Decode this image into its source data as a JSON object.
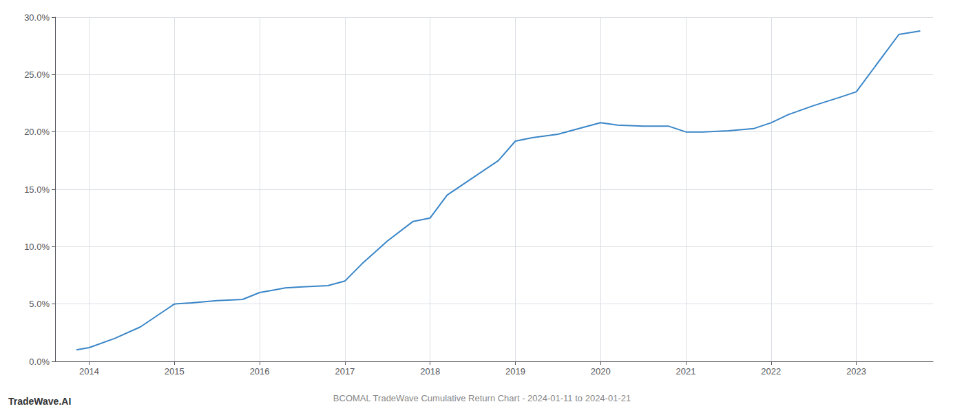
{
  "chart_data": {
    "type": "line",
    "title": "BCOMAL TradeWave Cumulative Return Chart - 2024-01-11 to 2024-01-21",
    "annotations": [
      "TradeWave.AI"
    ],
    "color": "#3a86c8",
    "grid": true,
    "x": [
      2013.85,
      2014.0,
      2014.3,
      2014.6,
      2014.9,
      2015.0,
      2015.2,
      2015.5,
      2015.8,
      2016.0,
      2016.15,
      2016.3,
      2016.5,
      2016.8,
      2017.0,
      2017.2,
      2017.5,
      2017.8,
      2018.0,
      2018.2,
      2018.5,
      2018.8,
      2019.0,
      2019.2,
      2019.5,
      2019.7,
      2020.0,
      2020.2,
      2020.5,
      2020.8,
      2021.0,
      2021.2,
      2021.5,
      2021.8,
      2022.0,
      2022.2,
      2022.5,
      2022.8,
      2023.0,
      2023.2,
      2023.5,
      2023.75
    ],
    "values": [
      1.0,
      1.2,
      2.0,
      3.0,
      4.5,
      5.0,
      5.1,
      5.3,
      5.4,
      6.0,
      6.2,
      6.4,
      6.5,
      6.6,
      7.0,
      8.5,
      10.5,
      12.2,
      12.5,
      14.5,
      16.0,
      17.5,
      19.2,
      19.5,
      19.8,
      20.2,
      20.8,
      20.6,
      20.5,
      20.5,
      20.0,
      20.0,
      20.1,
      20.3,
      20.8,
      21.5,
      22.3,
      23.0,
      23.5,
      25.5,
      28.5,
      28.8
    ],
    "xlim": [
      2013.6,
      2023.9
    ],
    "xticks": [
      2014,
      2015,
      2016,
      2017,
      2018,
      2019,
      2020,
      2021,
      2022,
      2023
    ],
    "ylim": [
      0.0,
      30.0
    ],
    "yticks": [
      {
        "value": 0.0,
        "label": "0.0%"
      },
      {
        "value": 5.0,
        "label": "5.0%"
      },
      {
        "value": 10.0,
        "label": "10.0%"
      },
      {
        "value": 15.0,
        "label": "15.0%"
      },
      {
        "value": 20.0,
        "label": "20.0%"
      },
      {
        "value": 25.0,
        "label": "25.0%"
      },
      {
        "value": 30.0,
        "label": "30.0%"
      }
    ]
  }
}
